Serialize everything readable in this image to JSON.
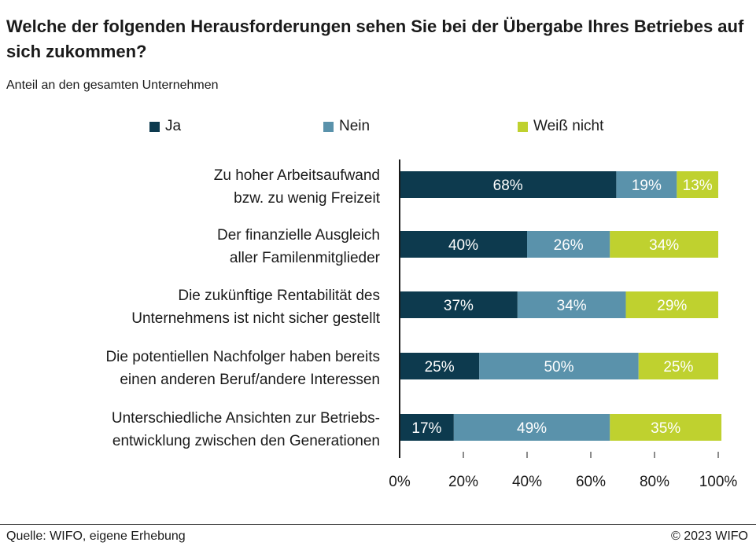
{
  "title": "Welche der folgenden Herausforderungen sehen Sie bei der Übergabe Ihres Betriebes auf sich zukommen?",
  "subtitle": "Anteil an den gesamten Unternehmen",
  "source": "Quelle: WIFO, eigene Erhebung",
  "copyright": "© 2023 WIFO",
  "colors": {
    "ja": "#0d3a4e",
    "nein": "#5a92ab",
    "weiss_nicht": "#bfd12f",
    "axis": "#1a1a1a"
  },
  "chart_data": {
    "type": "bar",
    "orientation": "horizontal",
    "stacked": true,
    "categories": [
      [
        "Zu hoher Arbeitsaufwand",
        "bzw. zu wenig Freizeit"
      ],
      [
        "Der finanzielle Ausgleich",
        "aller Familenmitglieder"
      ],
      [
        "Die zukünftige Rentabilität des",
        "Unternehmens ist nicht sicher gestellt"
      ],
      [
        "Die potentiellen Nachfolger haben bereits",
        "einen anderen Beruf/andere Interessen"
      ],
      [
        "Unterschiedliche Ansichten zur Betriebs-",
        "entwicklung zwischen den Generationen"
      ]
    ],
    "series": [
      {
        "name": "Ja",
        "values": [
          68,
          40,
          37,
          25,
          17
        ]
      },
      {
        "name": "Nein",
        "values": [
          19,
          26,
          34,
          50,
          49
        ]
      },
      {
        "name": "Weiß nicht",
        "values": [
          13,
          34,
          29,
          25,
          35
        ]
      }
    ],
    "data_labels": [
      [
        "68%",
        "40%",
        "37%",
        "25%",
        "17%"
      ],
      [
        "19%",
        "26%",
        "34%",
        "50%",
        "49%"
      ],
      [
        "13%",
        "34%",
        "29%",
        "25%",
        "35%"
      ]
    ],
    "xlim": [
      0,
      100
    ],
    "xticks": [
      "0%",
      "20%",
      "40%",
      "60%",
      "80%",
      "100%"
    ],
    "legend_position": "top",
    "grid": false
  }
}
